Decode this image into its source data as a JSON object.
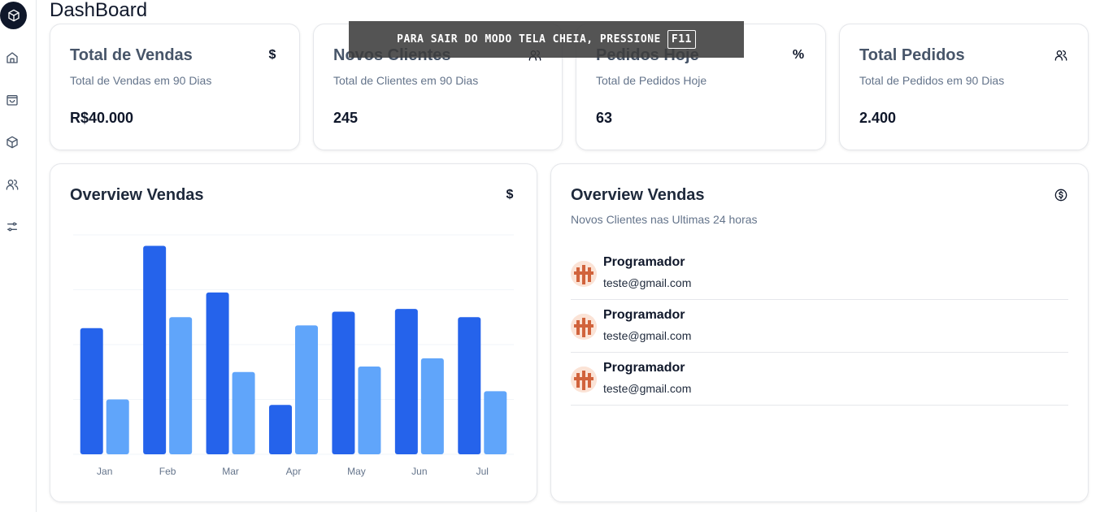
{
  "page": {
    "title": "DashBoard"
  },
  "sidebar": {
    "items": [
      {
        "name": "home-icon"
      },
      {
        "name": "shopping-bag-icon"
      },
      {
        "name": "package-icon"
      },
      {
        "name": "users-icon"
      },
      {
        "name": "settings-sliders-icon"
      }
    ]
  },
  "stats": [
    {
      "title": "Total de Vendas",
      "subtitle": "Total de Vendas em 90 Dias",
      "value": "R$40.000",
      "icon": "$",
      "icon_name": "dollar-icon"
    },
    {
      "title": "Novos Clientes",
      "subtitle": "Total de Clientes em 90 Dias",
      "value": "245",
      "icon_name": "users-icon"
    },
    {
      "title": "Pedidos Hoje",
      "subtitle": "Total de Pedidos Hoje",
      "value": "63",
      "icon": "%",
      "icon_name": "percent-icon"
    },
    {
      "title": "Total Pedidos",
      "subtitle": "Total de Pedidos em 90 Dias",
      "value": "2.400",
      "icon_name": "users-icon"
    }
  ],
  "overview_chart": {
    "title": "Overview Vendas",
    "icon": "$"
  },
  "overview_clients": {
    "title": "Overview Vendas",
    "subtitle": "Novos Clientes nas Ultimas 24 horas",
    "clients": [
      {
        "name": "Programador",
        "email": "teste@gmail.com"
      },
      {
        "name": "Programador",
        "email": "teste@gmail.com"
      },
      {
        "name": "Programador",
        "email": "teste@gmail.com"
      }
    ]
  },
  "toast": {
    "text": "PARA SAIR DO MODO TELA CHEIA, PRESSIONE",
    "key": "F11"
  },
  "colors": {
    "primary": "#2563eb",
    "secondary": "#60a5fa",
    "grid": "#f1f5f9"
  },
  "chart_data": {
    "type": "bar",
    "categories": [
      "Jan",
      "Feb",
      "Mar",
      "Apr",
      "May",
      "Jun",
      "Jul"
    ],
    "series": [
      {
        "values": [
          46,
          76,
          59,
          18,
          52,
          53,
          50
        ]
      },
      {
        "values": [
          20,
          50,
          30,
          47,
          32,
          35,
          23
        ]
      }
    ],
    "ylim": [
      0,
      80
    ],
    "grid": true,
    "legend": "none"
  }
}
